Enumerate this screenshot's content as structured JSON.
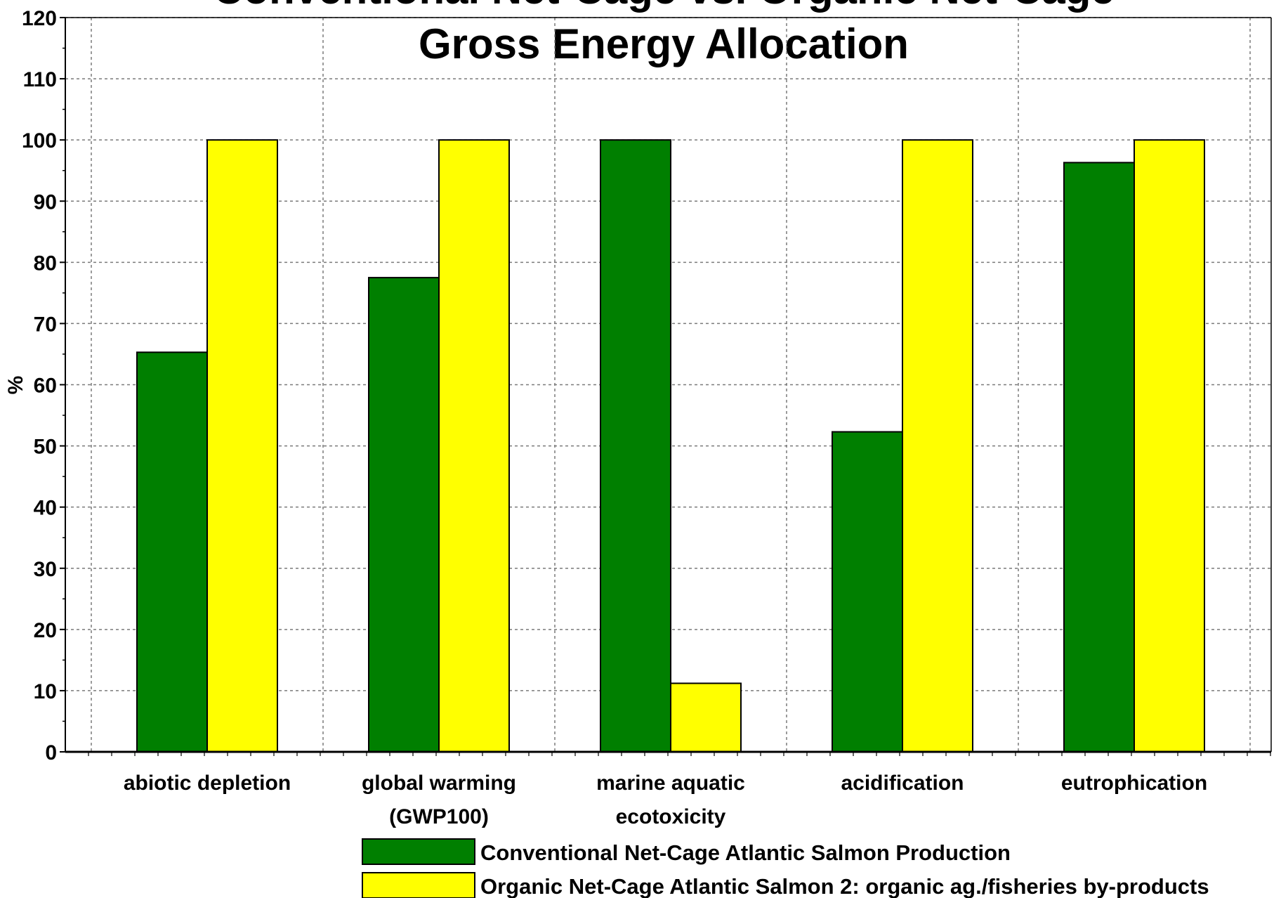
{
  "chart_data": {
    "type": "bar",
    "title_lines": [
      "Conventional Net-Cage vs. Organic Net-Cage",
      "Gross Energy Allocation"
    ],
    "ylabel": "%",
    "xlabel": "",
    "ylim": [
      0,
      120
    ],
    "yticks": [
      0,
      10,
      20,
      30,
      40,
      50,
      60,
      70,
      80,
      90,
      100,
      110,
      120
    ],
    "grid": true,
    "legend_position": "bottom",
    "categories": [
      [
        "abiotic depletion"
      ],
      [
        "global warming",
        "(GWP100)"
      ],
      [
        "marine aquatic",
        "ecotoxicity"
      ],
      [
        "acidification"
      ],
      [
        "eutrophication"
      ]
    ],
    "series": [
      {
        "name": "Conventional Net-Cage Atlantic Salmon Production",
        "color": "#007F00",
        "values": [
          65.3,
          77.5,
          100,
          52.3,
          96.3
        ]
      },
      {
        "name": "Organic Net-Cage Atlantic Salmon 2: organic ag./fisheries by-products",
        "color": "#FFFF00",
        "values": [
          100,
          100,
          11.2,
          100,
          100
        ]
      }
    ]
  }
}
